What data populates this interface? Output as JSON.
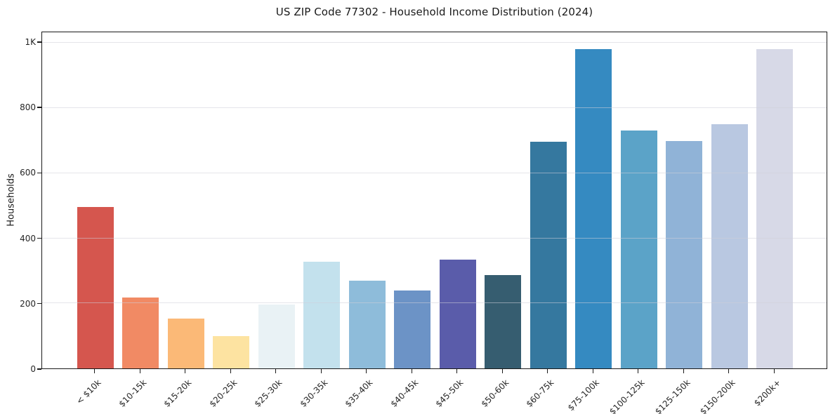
{
  "chart_data": {
    "type": "bar",
    "title": "US ZIP Code 77302 - Household Income Distribution (2024)",
    "xlabel": "",
    "ylabel": "Households",
    "categories": [
      "< $10k",
      "$10-15k",
      "$15-20k",
      "$20-25k",
      "$25-30k",
      "$30-35k",
      "$35-40k",
      "$40-45k",
      "$45-50k",
      "$50-60k",
      "$60-75k",
      "$75-100k",
      "$100-125k",
      "$125-150k",
      "$150-200k",
      "$200k+"
    ],
    "values": [
      496,
      218,
      153,
      100,
      196,
      327,
      269,
      240,
      335,
      288,
      697,
      982,
      732,
      700,
      751,
      982
    ],
    "bar_colors": [
      "#d5564e",
      "#f18a64",
      "#fbb977",
      "#fde3a1",
      "#e9f2f5",
      "#c3e1ed",
      "#8ebcda",
      "#6c93c6",
      "#5a5caa",
      "#365d70",
      "#35789f",
      "#358ac1",
      "#5ba3c8",
      "#90b3d7",
      "#b9c8e1",
      "#d7d9e7"
    ],
    "ylim": [
      0,
      1032
    ],
    "yticks": [
      {
        "value": 0,
        "label": "0"
      },
      {
        "value": 200,
        "label": "200"
      },
      {
        "value": 400,
        "label": "400"
      },
      {
        "value": 600,
        "label": "600"
      },
      {
        "value": 800,
        "label": "800"
      },
      {
        "value": 1000,
        "label": "1K"
      }
    ],
    "grid": "horizontal",
    "legend": "none"
  },
  "colors": {
    "background": "#ffffff",
    "spine": "#1a1a1a",
    "gridline_over_white": "#e9e9e9",
    "title_text": "#1a1a1a",
    "tick_text": "#262626"
  }
}
